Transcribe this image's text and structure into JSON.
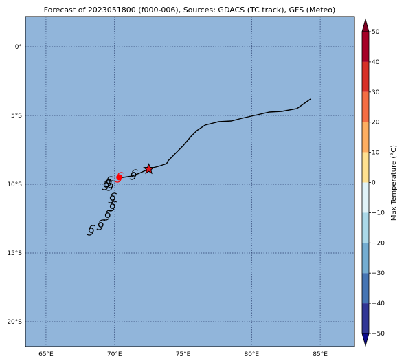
{
  "title": "Forecast of 2023051800 (f000-006), Sources: GDACS (TC track), GFS (Meteo)",
  "map": {
    "lon_range": [
      63.5,
      87.5
    ],
    "lat_range": [
      -21.8,
      2.2
    ],
    "ocean_color": "#91b5da",
    "gridline_color": "#2b3f6e",
    "lon_ticks": [
      {
        "value": 65,
        "label": "65°E"
      },
      {
        "value": 70,
        "label": "70°E"
      },
      {
        "value": 75,
        "label": "75°E"
      },
      {
        "value": 80,
        "label": "80°E"
      },
      {
        "value": 85,
        "label": "85°E"
      }
    ],
    "lat_ticks": [
      {
        "value": 0,
        "label": "0°"
      },
      {
        "value": -5,
        "label": "5°S"
      },
      {
        "value": -10,
        "label": "10°S"
      },
      {
        "value": -15,
        "label": "15°S"
      },
      {
        "value": -20,
        "label": "20°S"
      }
    ]
  },
  "track": {
    "line": [
      [
        84.3,
        -3.8
      ],
      [
        83.3,
        -4.5
      ],
      [
        82.2,
        -4.7
      ],
      [
        81.3,
        -4.75
      ],
      [
        80.2,
        -5.0
      ],
      [
        79.3,
        -5.2
      ],
      [
        78.5,
        -5.4
      ],
      [
        77.6,
        -5.45
      ],
      [
        76.6,
        -5.7
      ],
      [
        76.0,
        -6.1
      ],
      [
        75.6,
        -6.5
      ],
      [
        75.0,
        -7.2
      ],
      [
        74.7,
        -7.5
      ],
      [
        74.2,
        -8.0
      ],
      [
        73.9,
        -8.3
      ],
      [
        73.8,
        -8.5
      ],
      [
        73.2,
        -8.7
      ],
      [
        72.6,
        -8.85
      ],
      [
        71.8,
        -9.2
      ],
      [
        71.3,
        -9.4
      ],
      [
        70.3,
        -9.55
      ]
    ],
    "symbols": [
      {
        "lon": 68.3,
        "lat": -13.35,
        "active": false
      },
      {
        "lon": 69.0,
        "lat": -12.95,
        "active": false
      },
      {
        "lon": 69.5,
        "lat": -12.25,
        "active": false
      },
      {
        "lon": 69.85,
        "lat": -11.6,
        "active": false
      },
      {
        "lon": 69.85,
        "lat": -11.0,
        "active": false
      },
      {
        "lon": 69.7,
        "lat": -10.1,
        "active": false
      },
      {
        "lon": 69.6,
        "lat": -9.8,
        "active": false
      },
      {
        "lon": 69.4,
        "lat": -10.05,
        "active": false
      },
      {
        "lon": 71.4,
        "lat": -9.3,
        "active": false
      },
      {
        "lon": 70.35,
        "lat": -9.5,
        "active": true
      }
    ],
    "current_position": {
      "lon": 72.5,
      "lat": -8.9
    },
    "active_color": "#ff0000",
    "star_color": "#e8141c"
  },
  "colorbar": {
    "label": "Max Temperature (°C)",
    "ticks": [
      50,
      40,
      30,
      20,
      10,
      0,
      -10,
      -20,
      -30,
      -40,
      -50
    ],
    "colors": [
      "#a50026",
      "#d73027",
      "#f46d43",
      "#fdae61",
      "#fee090",
      "#ffffbf",
      "#e0f3f8",
      "#abd9e9",
      "#74add1",
      "#4575b4",
      "#313695"
    ],
    "extend_top_color": "#7f0021",
    "extend_bottom_color": "#0b0a8a"
  }
}
